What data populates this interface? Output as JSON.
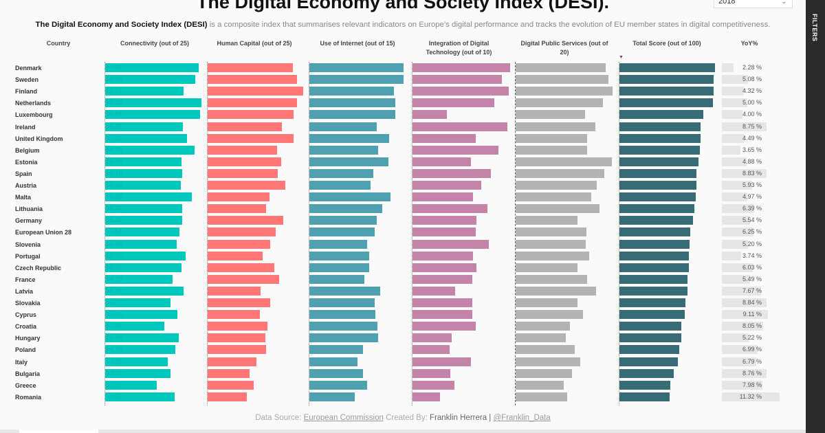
{
  "title": "The Digital Economy and Society Index (DESI).",
  "year_filter": {
    "selected": "2018"
  },
  "filters_label": "FILTERS",
  "subtitle": {
    "bold": "The Digital Economy and Society Index (DESI)",
    "rest": " is a composite index that summarises relevant indicators on Europe's digital performance and tracks the evolution of EU member states in digital competitiveness."
  },
  "columns": {
    "country": "Country",
    "connectivity": "Connectivity (out of 25)",
    "human_capital": "Human Capital (out of 25)",
    "use_of_internet": "Use of Internet (out of 15)",
    "integration": "Integration of Digital Technology (out of 10)",
    "public_services": "Digital Public Services (out of 20)",
    "total": "Total Score (out of 100)",
    "yoy": "YoY%"
  },
  "colors": {
    "connectivity": "#00c8bc",
    "human_capital": "#ff7676",
    "use_of_internet": "#4fa0b0",
    "integration": "#c484aa",
    "public_services": "#b3b3b3",
    "total": "#376b75",
    "yoy": "#e6e6e6"
  },
  "chart_data": {
    "type": "table",
    "sort": "Total Score descending",
    "rows": [
      {
        "country": "Denmark",
        "connectivity": 19.62,
        "human_capital": 17.9,
        "use_of_internet": 11.9,
        "integration": 8.2,
        "public_services": 15.1,
        "total": 73.5,
        "yoy": "2.28 %"
      },
      {
        "country": "Sweden",
        "connectivity": 19.0,
        "human_capital": 18.8,
        "use_of_internet": 11.9,
        "integration": 7.5,
        "public_services": 15.6,
        "total": 72.5,
        "yoy": "5.08 %"
      },
      {
        "country": "Finland",
        "connectivity": 16.51,
        "human_capital": 20.1,
        "use_of_internet": 10.7,
        "integration": 8.1,
        "public_services": 16.3,
        "total": 72.4,
        "yoy": "4.32 %"
      },
      {
        "country": "Netherlands",
        "connectivity": 20.28,
        "human_capital": 18.8,
        "use_of_internet": 10.8,
        "integration": 6.9,
        "public_services": 14.7,
        "total": 72.0,
        "yoy": "5.00 %"
      },
      {
        "country": "Luxembourg",
        "connectivity": 20.01,
        "human_capital": 18.0,
        "use_of_internet": 10.8,
        "integration": 2.9,
        "public_services": 11.7,
        "total": 64.6,
        "yoy": "4.00 %"
      },
      {
        "country": "Ireland",
        "connectivity": 16.28,
        "human_capital": 15.6,
        "use_of_internet": 8.5,
        "integration": 8.0,
        "public_services": 13.4,
        "total": 62.4,
        "yoy": "8.75 %"
      },
      {
        "country": "United Kingdom",
        "connectivity": 17.21,
        "human_capital": 18.0,
        "use_of_internet": 10.1,
        "integration": 5.3,
        "public_services": 12.0,
        "total": 62.4,
        "yoy": "4.49 %"
      },
      {
        "country": "Belgium",
        "connectivity": 18.78,
        "human_capital": 14.6,
        "use_of_internet": 8.7,
        "integration": 7.2,
        "public_services": 12.0,
        "total": 61.9,
        "yoy": "3.65 %"
      },
      {
        "country": "Estonia",
        "connectivity": 16.03,
        "human_capital": 15.4,
        "use_of_internet": 10.0,
        "integration": 4.9,
        "public_services": 16.2,
        "total": 60.8,
        "yoy": "4.88 %"
      },
      {
        "country": "Spain",
        "connectivity": 16.18,
        "human_capital": 14.7,
        "use_of_internet": 8.1,
        "integration": 6.6,
        "public_services": 14.9,
        "total": 59.3,
        "yoy": "8.83 %"
      },
      {
        "country": "Austria",
        "connectivity": 15.93,
        "human_capital": 16.3,
        "use_of_internet": 7.7,
        "integration": 5.8,
        "public_services": 13.6,
        "total": 59.3,
        "yoy": "5.93 %"
      },
      {
        "country": "Malta",
        "connectivity": 18.28,
        "human_capital": 13.0,
        "use_of_internet": 10.2,
        "integration": 5.1,
        "public_services": 12.7,
        "total": 58.7,
        "yoy": "4.97 %"
      },
      {
        "country": "Lithuania",
        "connectivity": 16.22,
        "human_capital": 12.3,
        "use_of_internet": 9.2,
        "integration": 6.3,
        "public_services": 14.1,
        "total": 57.7,
        "yoy": "6.39 %"
      },
      {
        "country": "Germany",
        "connectivity": 16.19,
        "human_capital": 15.9,
        "use_of_internet": 8.5,
        "integration": 5.4,
        "public_services": 10.4,
        "total": 56.6,
        "yoy": "5.54 %"
      },
      {
        "country": "European Union 28",
        "connectivity": 15.64,
        "human_capital": 14.3,
        "use_of_internet": 8.2,
        "integration": 5.3,
        "public_services": 11.9,
        "total": 54.5,
        "yoy": "6.25 %"
      },
      {
        "country": "Slovenia",
        "connectivity": 15.08,
        "human_capital": 13.1,
        "use_of_internet": 7.3,
        "integration": 6.4,
        "public_services": 11.8,
        "total": 54.0,
        "yoy": "5.20 %"
      },
      {
        "country": "Portugal",
        "connectivity": 16.85,
        "human_capital": 11.5,
        "use_of_internet": 7.5,
        "integration": 5.1,
        "public_services": 12.4,
        "total": 53.4,
        "yoy": "3.74 %"
      },
      {
        "country": "Czech Republic",
        "connectivity": 15.97,
        "human_capital": 14.0,
        "use_of_internet": 7.5,
        "integration": 5.4,
        "public_services": 10.4,
        "total": 53.4,
        "yoy": "6.03 %"
      },
      {
        "country": "France",
        "connectivity": 14.1,
        "human_capital": 15.0,
        "use_of_internet": 6.9,
        "integration": 5.0,
        "public_services": 12.0,
        "total": 52.4,
        "yoy": "5.49 %"
      },
      {
        "country": "Latvia",
        "connectivity": 16.48,
        "human_capital": 11.1,
        "use_of_internet": 8.9,
        "integration": 3.6,
        "public_services": 13.5,
        "total": 52.4,
        "yoy": "7.67 %"
      },
      {
        "country": "Slovakia",
        "connectivity": 13.77,
        "human_capital": 13.1,
        "use_of_internet": 8.2,
        "integration": 5.0,
        "public_services": 10.4,
        "total": 50.8,
        "yoy": "8.84 %"
      },
      {
        "country": "Cyprus",
        "connectivity": 15.16,
        "human_capital": 11.0,
        "use_of_internet": 8.3,
        "integration": 5.0,
        "public_services": 11.3,
        "total": 50.3,
        "yoy": "9.11 %"
      },
      {
        "country": "Croatia",
        "connectivity": 12.36,
        "human_capital": 12.6,
        "use_of_internet": 8.6,
        "integration": 5.3,
        "public_services": 9.1,
        "total": 47.6,
        "yoy": "8.05 %"
      },
      {
        "country": "Hungary",
        "connectivity": 15.43,
        "human_capital": 12.1,
        "use_of_internet": 8.7,
        "integration": 3.3,
        "public_services": 8.4,
        "total": 47.6,
        "yoy": "5.22 %"
      },
      {
        "country": "Poland",
        "connectivity": 14.7,
        "human_capital": 12.3,
        "use_of_internet": 6.8,
        "integration": 3.1,
        "public_services": 9.9,
        "total": 46.0,
        "yoy": "6.99 %"
      },
      {
        "country": "Italy",
        "connectivity": 13.21,
        "human_capital": 10.2,
        "use_of_internet": 6.1,
        "integration": 4.9,
        "public_services": 10.9,
        "total": 45.0,
        "yoy": "6.79 %"
      },
      {
        "country": "Bulgaria",
        "connectivity": 13.73,
        "human_capital": 8.8,
        "use_of_internet": 6.8,
        "integration": 3.2,
        "public_services": 9.5,
        "total": 41.8,
        "yoy": "8.76 %"
      },
      {
        "country": "Greece",
        "connectivity": 10.78,
        "human_capital": 9.7,
        "use_of_internet": 7.3,
        "integration": 3.5,
        "public_services": 8.1,
        "total": 39.2,
        "yoy": "7.98 %"
      },
      {
        "country": "Romania",
        "connectivity": 14.53,
        "human_capital": 8.2,
        "use_of_internet": 5.7,
        "integration": 2.3,
        "public_services": 8.7,
        "total": 38.6,
        "yoy": "11.32 %"
      }
    ]
  },
  "footer": {
    "source_prefix": "Data Source: ",
    "source_link": "European Commission",
    "created_prefix": " Created By: ",
    "author": "Franklin Herrera",
    "separator": " | ",
    "handle": "@Franklin_Data"
  }
}
